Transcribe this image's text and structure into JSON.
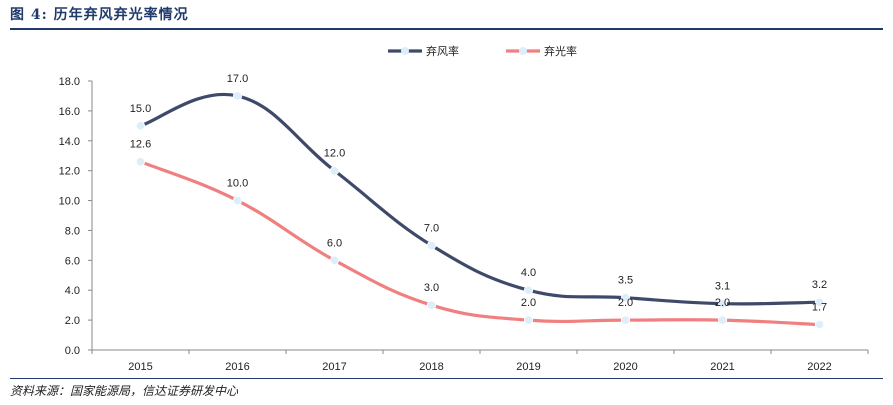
{
  "figure": {
    "number_label": "图 4:",
    "title": "历年弃风弃光率情况",
    "source": "资料来源：国家能源局，信达证券研发中心"
  },
  "colors": {
    "series1": "#3f4a6b",
    "series2": "#f08080",
    "marker": "#dbeefa",
    "axis": "#888888",
    "title": "#1f3a6b"
  },
  "chart_data": {
    "type": "line",
    "title": "历年弃风弃光率情况",
    "xlabel": "",
    "ylabel": "",
    "categories": [
      "2015",
      "2016",
      "2017",
      "2018",
      "2019",
      "2020",
      "2021",
      "2022"
    ],
    "ylim": [
      0,
      18
    ],
    "yticks": [
      "0.0",
      "2.0",
      "4.0",
      "6.0",
      "8.0",
      "10.0",
      "12.0",
      "14.0",
      "16.0",
      "18.0"
    ],
    "grid": false,
    "legend_position": "top-right",
    "series": [
      {
        "name": "弃风率",
        "values": [
          15.0,
          17.0,
          12.0,
          7.0,
          4.0,
          3.5,
          3.1,
          3.2
        ],
        "labels": [
          "15.0",
          "17.0",
          "12.0",
          "7.0",
          "4.0",
          "3.5",
          "3.1",
          "3.2"
        ]
      },
      {
        "name": "弃光率",
        "values": [
          12.6,
          10.0,
          6.0,
          3.0,
          2.0,
          2.0,
          2.0,
          1.7
        ],
        "labels": [
          "12.6",
          "10.0",
          "6.0",
          "3.0",
          "2.0",
          "2.0",
          "2.0",
          "1.7"
        ]
      }
    ]
  }
}
